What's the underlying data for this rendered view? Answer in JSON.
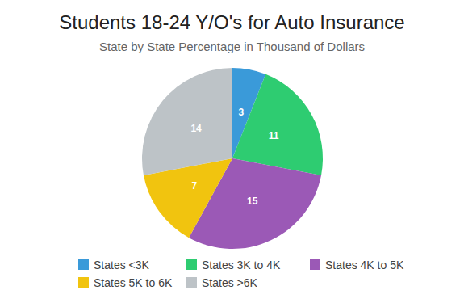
{
  "chart_data": {
    "type": "pie",
    "title": "Students 18-24 Y/O's for Auto Insurance",
    "subtitle": "State by State Percentage in Thousand of Dollars",
    "categories": [
      "States <3K",
      "States 3K to 4K",
      "States 4K to 5K",
      "States 5K to 6K",
      "States >6K"
    ],
    "values": [
      3,
      11,
      15,
      7,
      14
    ],
    "colors": [
      "#3a9ad9",
      "#2ecc71",
      "#9b59b6",
      "#f1c40f",
      "#bdc3c7"
    ],
    "data_labels": true,
    "legend": "bottom"
  }
}
